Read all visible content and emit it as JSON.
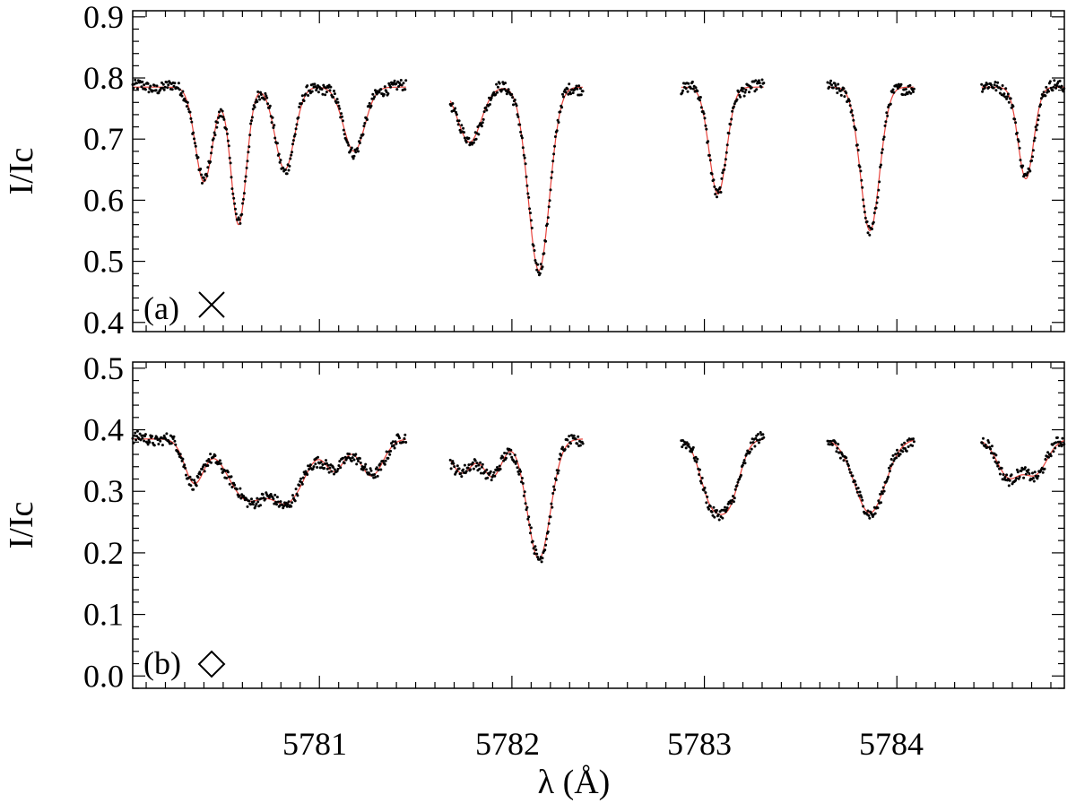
{
  "figure": {
    "xlabel": "λ (Å)",
    "x_tick_labels": [
      "5781",
      "5782",
      "5783",
      "5784"
    ]
  },
  "chart_data": [
    {
      "type": "scatter",
      "panel_label": "(a)",
      "panel_symbol": "cross",
      "xlabel": "λ (Å)",
      "ylabel": "I/Ic",
      "xlim": [
        5780.03,
        5784.87
      ],
      "ylim": [
        0.385,
        0.91
      ],
      "x_ticks": [
        5781,
        5782,
        5783,
        5784
      ],
      "y_ticks": [
        0.4,
        0.5,
        0.6,
        0.7,
        0.8,
        0.9
      ],
      "y_tick_labels": [
        "0.4",
        "0.5",
        "0.6",
        "0.7",
        "0.8",
        "0.9"
      ],
      "grid": false,
      "continuum": 0.785,
      "series": [
        {
          "role": "observed",
          "color": "#000000",
          "marker": "dot"
        },
        {
          "role": "synthetic",
          "color": "#e8433c",
          "marker": "line"
        }
      ],
      "segments": [
        [
          5780.03,
          5781.45
        ],
        [
          5781.68,
          5782.37
        ],
        [
          5782.88,
          5783.31
        ],
        [
          5783.64,
          5784.09
        ],
        [
          5784.44,
          5784.87
        ]
      ],
      "lines": [
        {
          "center": 5780.4,
          "min": 0.63,
          "width": 0.045
        },
        {
          "center": 5780.58,
          "min": 0.56,
          "width": 0.04
        },
        {
          "center": 5780.82,
          "min": 0.65,
          "width": 0.05
        },
        {
          "center": 5781.18,
          "min": 0.68,
          "width": 0.055
        },
        {
          "center": 5781.78,
          "min": 0.695,
          "width": 0.06
        },
        {
          "center": 5782.14,
          "min": 0.485,
          "width": 0.055
        },
        {
          "center": 5783.07,
          "min": 0.61,
          "width": 0.045
        },
        {
          "center": 5783.86,
          "min": 0.55,
          "width": 0.05
        },
        {
          "center": 5784.67,
          "min": 0.635,
          "width": 0.04
        }
      ]
    },
    {
      "type": "scatter",
      "panel_label": "(b)",
      "panel_symbol": "diamond",
      "xlabel": "λ (Å)",
      "ylabel": "I/Ic",
      "xlim": [
        5780.03,
        5784.87
      ],
      "ylim": [
        -0.02,
        0.51
      ],
      "x_ticks": [
        5781,
        5782,
        5783,
        5784
      ],
      "y_ticks": [
        0.0,
        0.1,
        0.2,
        0.3,
        0.4,
        0.5
      ],
      "y_tick_labels": [
        "0.0",
        "0.1",
        "0.2",
        "0.3",
        "0.4",
        "0.5"
      ],
      "grid": false,
      "continuum": 0.385,
      "series": [
        {
          "role": "observed",
          "color": "#000000",
          "marker": "dot"
        },
        {
          "role": "synthetic",
          "color": "#e8433c",
          "marker": "line"
        }
      ],
      "segments": [
        [
          5780.03,
          5781.45
        ],
        [
          5781.68,
          5782.37
        ],
        [
          5782.88,
          5783.31
        ],
        [
          5783.64,
          5784.09
        ],
        [
          5784.44,
          5784.87
        ]
      ],
      "lines": [
        {
          "center": 5780.35,
          "min": 0.315,
          "width": 0.05
        },
        {
          "center": 5780.62,
          "min": 0.29,
          "width": 0.1
        },
        {
          "center": 5780.84,
          "min": 0.29,
          "width": 0.09
        },
        {
          "center": 5781.08,
          "min": 0.335,
          "width": 0.05
        },
        {
          "center": 5781.27,
          "min": 0.325,
          "width": 0.06
        },
        {
          "center": 5781.74,
          "min": 0.33,
          "width": 0.06
        },
        {
          "center": 5781.9,
          "min": 0.325,
          "width": 0.05
        },
        {
          "center": 5782.14,
          "min": 0.19,
          "width": 0.06
        },
        {
          "center": 5783.03,
          "min": 0.295,
          "width": 0.055
        },
        {
          "center": 5783.13,
          "min": 0.29,
          "width": 0.055
        },
        {
          "center": 5783.86,
          "min": 0.265,
          "width": 0.08
        },
        {
          "center": 5784.58,
          "min": 0.325,
          "width": 0.06
        },
        {
          "center": 5784.72,
          "min": 0.33,
          "width": 0.06
        }
      ]
    }
  ]
}
